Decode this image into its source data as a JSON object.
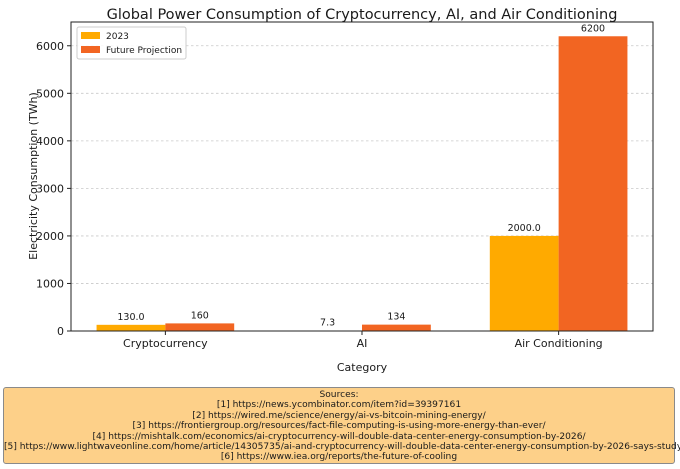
{
  "chart_data": {
    "type": "bar",
    "title": "Global Power Consumption of Cryptocurrency, AI, and Air Conditioning",
    "xlabel": "Category",
    "ylabel": "Electricity Consumption (TWh)",
    "categories": [
      "Cryptocurrency",
      "AI",
      "Air Conditioning"
    ],
    "series": [
      {
        "name": "2023",
        "values": [
          130.0,
          7.3,
          2000.0
        ],
        "labels": [
          "130.0",
          "7.3",
          "2000.0"
        ],
        "color": "#ffaa00"
      },
      {
        "name": "Future Projection",
        "values": [
          160,
          134,
          6200
        ],
        "labels": [
          "160",
          "134",
          "6200"
        ],
        "color": "#f26522"
      }
    ],
    "ylim": [
      0,
      6500
    ],
    "yticks": [
      0,
      1000,
      2000,
      3000,
      4000,
      5000,
      6000
    ],
    "grid": true,
    "legend": "top-left"
  },
  "sources": {
    "heading": "Sources:",
    "items": [
      "[1] https://news.ycombinator.com/item?id=39397161",
      "[2] https://wired.me/science/energy/ai-vs-bitcoin-mining-energy/",
      "[3] https://frontiergroup.org/resources/fact-file-computing-is-using-more-energy-than-ever/",
      "[4] https://mishtalk.com/economics/ai-cryptocurrency-will-double-data-center-energy-consumption-by-2026/",
      "[5] https://www.lightwaveonline.com/home/article/14305735/ai-and-cryptocurrency-will-double-data-center-energy-consumption-by-2026-says-study",
      "[6] https://www.iea.org/reports/the-future-of-cooling"
    ]
  }
}
